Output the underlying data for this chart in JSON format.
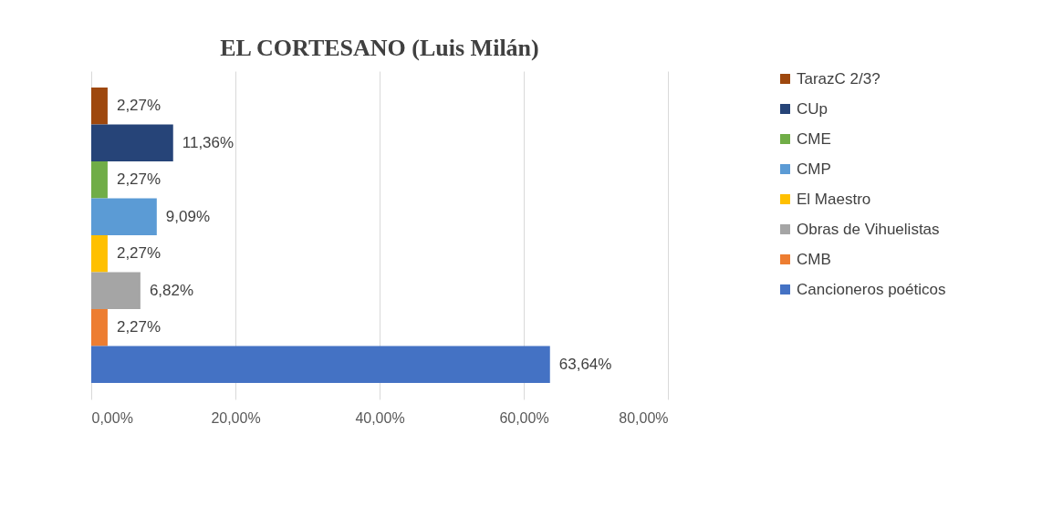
{
  "chart_data": {
    "type": "bar",
    "orientation": "horizontal",
    "title": "EL CORTESANO (Luis Milán)",
    "categories": [
      null
    ],
    "series": [
      {
        "name": "TarazC  2/3?",
        "color": "#9e480e",
        "values": [
          2.27
        ],
        "value_labels": [
          "2,27%"
        ]
      },
      {
        "name": "CUp",
        "color": "#264478",
        "values": [
          11.36
        ],
        "value_labels": [
          "11,36%"
        ]
      },
      {
        "name": "CME",
        "color": "#70ad47",
        "values": [
          2.27
        ],
        "value_labels": [
          "2,27%"
        ]
      },
      {
        "name": "CMP",
        "color": "#5b9bd5",
        "values": [
          9.09
        ],
        "value_labels": [
          "9,09%"
        ]
      },
      {
        "name": "El Maestro",
        "color": "#ffc000",
        "values": [
          2.27
        ],
        "value_labels": [
          "2,27%"
        ]
      },
      {
        "name": "Obras  de Vihuelistas",
        "color": "#a5a5a5",
        "values": [
          6.82
        ],
        "value_labels": [
          "6,82%"
        ]
      },
      {
        "name": "CMB",
        "color": "#ed7d31",
        "values": [
          2.27
        ],
        "value_labels": [
          "2,27%"
        ]
      },
      {
        "name": "Cancioneros poéticos",
        "color": "#4472c4",
        "values": [
          63.64
        ],
        "value_labels": [
          "63,64%"
        ]
      }
    ],
    "xlim": [
      0,
      80
    ],
    "xticks": [
      {
        "value": 0,
        "label": "0,00%"
      },
      {
        "value": 20,
        "label": "20,00%"
      },
      {
        "value": 40,
        "label": "40,00%"
      },
      {
        "value": 60,
        "label": "60,00%"
      },
      {
        "value": 80,
        "label": "80,00%"
      }
    ],
    "grid": "x",
    "legend": "right"
  }
}
